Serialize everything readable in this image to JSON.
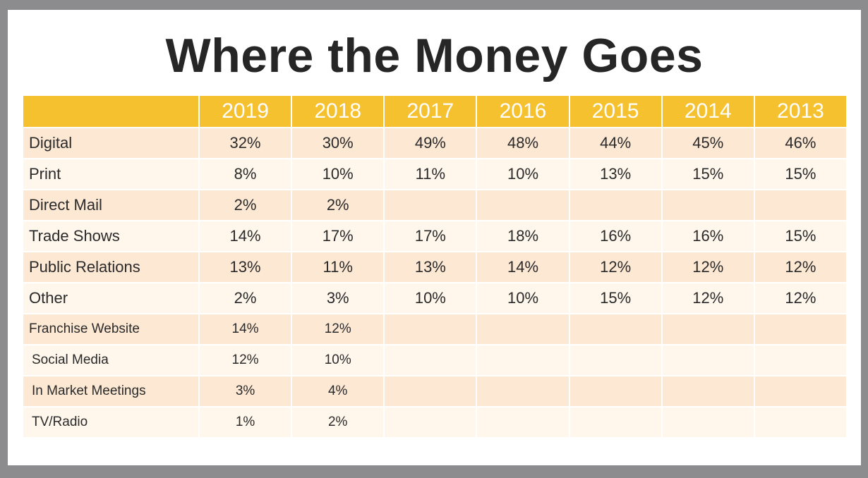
{
  "chart_data": {
    "type": "table",
    "title": "Where the Money Goes",
    "columns": [
      "2019",
      "2018",
      "2017",
      "2016",
      "2015",
      "2014",
      "2013"
    ],
    "rows": [
      {
        "label": "Digital",
        "values": [
          "32%",
          "30%",
          "49%",
          "48%",
          "44%",
          "45%",
          "46%"
        ]
      },
      {
        "label": "Print",
        "values": [
          "8%",
          "10%",
          "11%",
          "10%",
          "13%",
          "15%",
          "15%"
        ]
      },
      {
        "label": "Direct Mail",
        "values": [
          "2%",
          "2%",
          "",
          "",
          "",
          "",
          ""
        ]
      },
      {
        "label": "Trade Shows",
        "values": [
          "14%",
          "17%",
          "17%",
          "18%",
          "16%",
          "16%",
          "15%"
        ]
      },
      {
        "label": "Public Relations",
        "values": [
          "13%",
          "11%",
          "13%",
          "14%",
          "12%",
          "12%",
          "12%"
        ]
      },
      {
        "label": "Other",
        "values": [
          "2%",
          "3%",
          "10%",
          "10%",
          "15%",
          "12%",
          "12%"
        ]
      },
      {
        "label": "Franchise Website",
        "values": [
          "14%",
          "12%",
          "",
          "",
          "",
          "",
          ""
        ]
      },
      {
        "label": "Social Media",
        "values": [
          "12%",
          "10%",
          "",
          "",
          "",
          "",
          ""
        ]
      },
      {
        "label": "In Market Meetings",
        "values": [
          "3%",
          "4%",
          "",
          "",
          "",
          "",
          ""
        ]
      },
      {
        "label": "TV/Radio",
        "values": [
          "1%",
          "2%",
          "",
          "",
          "",
          "",
          ""
        ]
      }
    ]
  },
  "colors": {
    "header": "#f6c12f",
    "row_odd": "#fde8d4",
    "row_even": "#fff6ec",
    "frame": "#8c8c8e"
  }
}
